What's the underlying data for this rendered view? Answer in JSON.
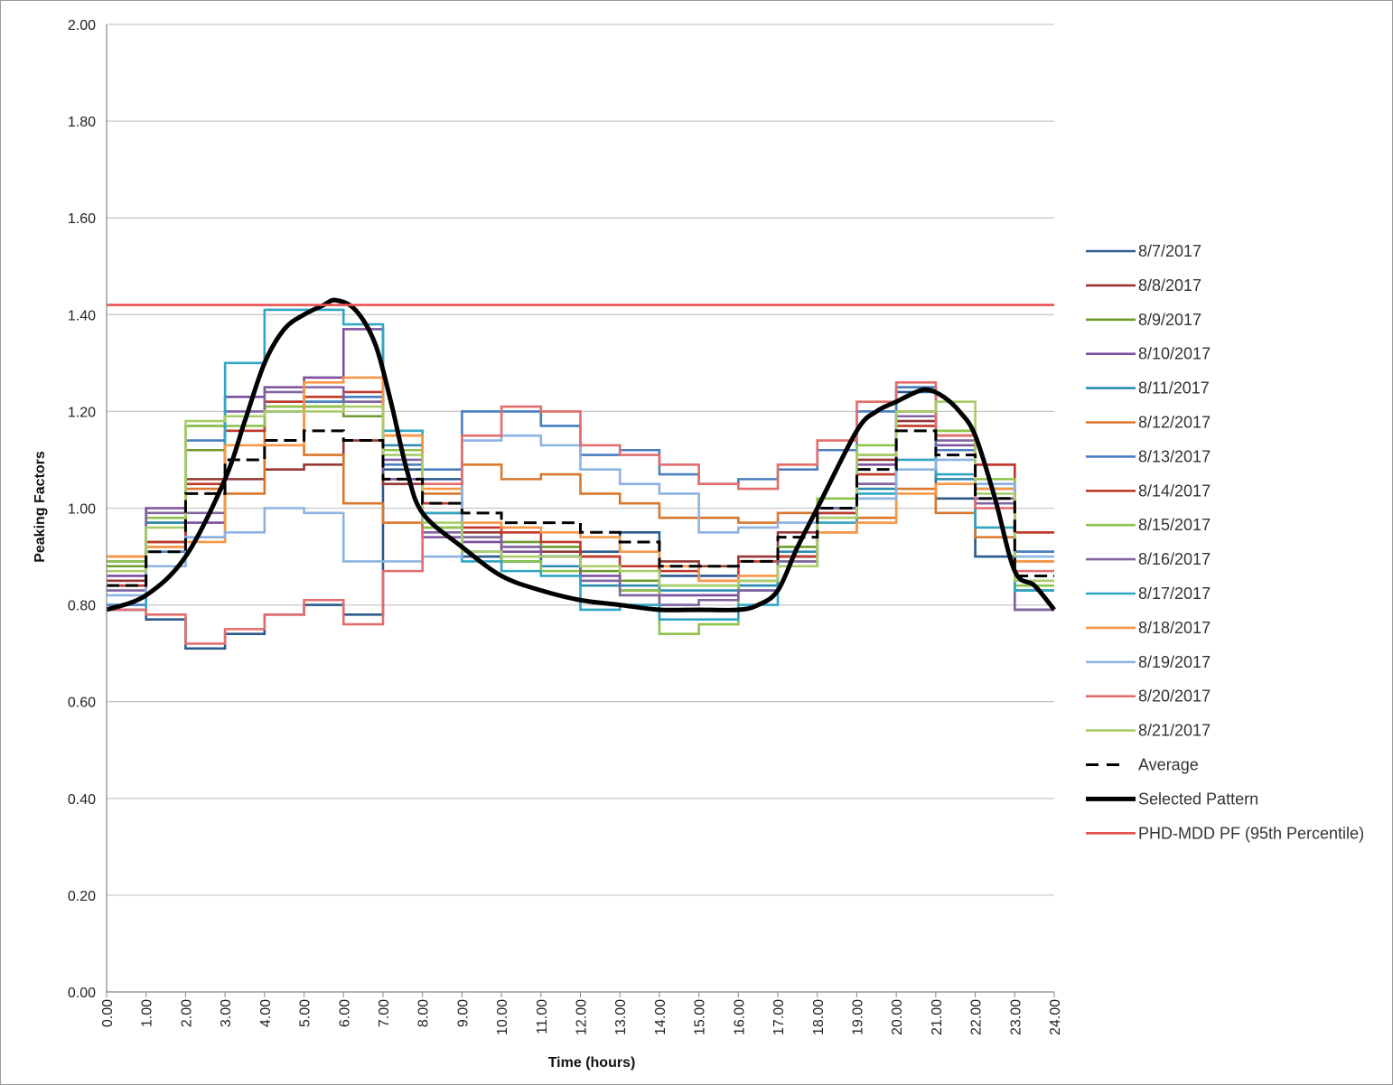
{
  "chart_data": {
    "type": "line",
    "title": "",
    "xlabel": "Time (hours)",
    "ylabel": "Peaking Factors",
    "xlim": [
      0,
      24
    ],
    "ylim": [
      0,
      2
    ],
    "x_ticks": [
      "0.00",
      "1.00",
      "2.00",
      "3.00",
      "4.00",
      "5.00",
      "6.00",
      "7.00",
      "8.00",
      "9.00",
      "10.00",
      "11.00",
      "12.00",
      "13.00",
      "14.00",
      "15.00",
      "16.00",
      "17.00",
      "18.00",
      "19.00",
      "20.00",
      "21.00",
      "22.00",
      "23.00",
      "24.00"
    ],
    "y_ticks": [
      "0.00",
      "0.20",
      "0.40",
      "0.60",
      "0.80",
      "1.00",
      "1.20",
      "1.40",
      "1.60",
      "1.80",
      "2.00"
    ],
    "grid": "horizontal",
    "legend_position": "right",
    "hour_starts": [
      0,
      1,
      2,
      3,
      4,
      5,
      6,
      7,
      8,
      9,
      10,
      11,
      12,
      13,
      14,
      15,
      16,
      17,
      18,
      19,
      20,
      21,
      22,
      23
    ],
    "series": [
      {
        "name": "8/7/2017",
        "color": "#2a5a8c",
        "style": "step",
        "values": [
          0.79,
          0.77,
          0.71,
          0.74,
          0.78,
          0.8,
          0.78,
          1.08,
          1.06,
          0.9,
          0.89,
          0.9,
          0.91,
          0.95,
          0.86,
          0.86,
          0.83,
          0.9,
          0.99,
          1.05,
          1.24,
          1.02,
          0.9,
          0.91
        ]
      },
      {
        "name": "8/8/2017",
        "color": "#953734",
        "style": "step",
        "values": [
          0.85,
          0.93,
          1.06,
          1.06,
          1.08,
          1.09,
          1.14,
          1.05,
          0.99,
          0.95,
          0.92,
          0.91,
          0.9,
          0.88,
          0.89,
          0.88,
          0.9,
          0.95,
          0.99,
          1.1,
          1.18,
          1.15,
          1.09,
          0.95
        ]
      },
      {
        "name": "8/9/2017",
        "color": "#6f9a2d",
        "style": "step",
        "values": [
          0.88,
          0.97,
          1.12,
          1.19,
          1.2,
          1.21,
          1.19,
          1.12,
          0.96,
          0.94,
          0.93,
          0.92,
          0.87,
          0.85,
          0.84,
          0.84,
          0.85,
          0.92,
          1.0,
          1.11,
          1.19,
          1.16,
          1.04,
          0.83
        ]
      },
      {
        "name": "8/10/2017",
        "color": "#7b4f9d",
        "style": "step",
        "values": [
          0.86,
          1.0,
          0.97,
          1.23,
          1.25,
          1.27,
          1.37,
          1.06,
          0.94,
          0.93,
          0.91,
          0.9,
          0.86,
          0.83,
          0.82,
          0.82,
          0.84,
          0.9,
          1.0,
          1.09,
          1.2,
          1.13,
          1.02,
          0.79
        ]
      },
      {
        "name": "8/11/2017",
        "color": "#2e8bb0",
        "style": "step",
        "values": [
          0.89,
          0.97,
          1.17,
          1.19,
          1.22,
          1.22,
          1.23,
          1.13,
          0.99,
          0.91,
          0.89,
          0.88,
          0.84,
          0.84,
          0.83,
          0.83,
          0.84,
          0.91,
          1.0,
          1.04,
          1.25,
          1.06,
          1.04,
          0.83
        ]
      },
      {
        "name": "8/12/2017",
        "color": "#d9772c",
        "style": "step",
        "values": [
          0.9,
          0.92,
          1.04,
          1.03,
          1.21,
          1.11,
          1.01,
          0.97,
          1.03,
          1.09,
          1.06,
          1.07,
          1.03,
          1.01,
          0.98,
          0.98,
          0.97,
          0.99,
          0.95,
          0.98,
          1.04,
          0.99,
          0.94,
          0.89
        ]
      },
      {
        "name": "8/13/2017",
        "color": "#4a7ec0",
        "style": "step",
        "values": [
          0.8,
          0.91,
          1.14,
          1.16,
          1.2,
          1.22,
          1.23,
          1.09,
          1.08,
          1.2,
          1.2,
          1.17,
          1.11,
          1.12,
          1.07,
          1.05,
          1.06,
          1.08,
          1.12,
          1.2,
          1.25,
          1.12,
          1.05,
          0.91
        ]
      },
      {
        "name": "8/14/2017",
        "color": "#c0392b",
        "style": "step",
        "values": [
          0.84,
          0.93,
          1.05,
          1.16,
          1.22,
          1.23,
          1.24,
          1.15,
          1.01,
          0.96,
          0.95,
          0.93,
          0.9,
          0.88,
          0.87,
          0.85,
          0.89,
          0.9,
          0.99,
          1.07,
          1.17,
          1.15,
          1.09,
          0.95
        ]
      },
      {
        "name": "8/15/2017",
        "color": "#8fc24a",
        "style": "step",
        "values": [
          0.89,
          0.98,
          1.17,
          1.17,
          1.21,
          1.21,
          1.22,
          1.12,
          0.96,
          0.91,
          0.89,
          0.87,
          0.85,
          0.83,
          0.74,
          0.76,
          0.85,
          0.89,
          1.02,
          1.13,
          1.19,
          1.16,
          1.06,
          0.84
        ]
      },
      {
        "name": "8/16/2017",
        "color": "#8064a2",
        "style": "step",
        "values": [
          0.83,
          0.99,
          0.99,
          1.2,
          1.24,
          1.25,
          1.22,
          1.1,
          0.95,
          0.94,
          0.92,
          0.9,
          0.85,
          0.82,
          0.8,
          0.81,
          0.83,
          0.89,
          1.0,
          1.05,
          1.19,
          1.14,
          1.01,
          0.79
        ]
      },
      {
        "name": "8/17/2017",
        "color": "#31a5c4",
        "style": "step",
        "values": [
          0.79,
          0.92,
          0.94,
          1.3,
          1.41,
          1.41,
          1.38,
          1.16,
          0.99,
          0.89,
          0.87,
          0.86,
          0.79,
          0.8,
          0.77,
          0.77,
          0.8,
          0.88,
          0.97,
          1.03,
          1.1,
          1.07,
          0.96,
          0.83
        ]
      },
      {
        "name": "8/18/2017",
        "color": "#f79646",
        "style": "step",
        "values": [
          0.9,
          0.92,
          0.93,
          1.13,
          1.13,
          1.26,
          1.27,
          1.15,
          1.04,
          0.97,
          0.96,
          0.95,
          0.94,
          0.91,
          0.88,
          0.85,
          0.86,
          0.88,
          0.95,
          0.97,
          1.03,
          1.05,
          1.04,
          0.89
        ]
      },
      {
        "name": "8/19/2017",
        "color": "#8db3e2",
        "style": "step",
        "values": [
          0.82,
          0.88,
          0.94,
          0.95,
          1.0,
          0.99,
          0.89,
          0.89,
          0.9,
          1.14,
          1.15,
          1.13,
          1.08,
          1.05,
          1.03,
          0.95,
          0.96,
          0.97,
          0.98,
          1.02,
          1.08,
          1.1,
          1.05,
          0.9
        ]
      },
      {
        "name": "8/20/2017",
        "color": "#e46c6c",
        "style": "step",
        "values": [
          0.79,
          0.78,
          0.72,
          0.75,
          0.78,
          0.81,
          0.76,
          0.87,
          1.05,
          1.15,
          1.21,
          1.2,
          1.13,
          1.11,
          1.09,
          1.05,
          1.04,
          1.09,
          1.14,
          1.22,
          1.26,
          1.15,
          1.0,
          0.87
        ]
      },
      {
        "name": "8/21/2017",
        "color": "#a9cc6a",
        "style": "step",
        "values": [
          0.87,
          0.96,
          1.18,
          1.19,
          1.2,
          1.2,
          1.21,
          1.11,
          0.97,
          0.91,
          0.9,
          0.9,
          0.88,
          0.87,
          0.84,
          0.84,
          0.85,
          0.88,
          0.98,
          1.11,
          1.2,
          1.22,
          1.03,
          0.85
        ]
      },
      {
        "name": "Average",
        "color": "#000000",
        "style": "step-dashed",
        "values": [
          0.84,
          0.91,
          1.03,
          1.1,
          1.14,
          1.16,
          1.14,
          1.06,
          1.01,
          0.99,
          0.97,
          0.97,
          0.95,
          0.93,
          0.88,
          0.88,
          0.89,
          0.94,
          1.0,
          1.08,
          1.16,
          1.11,
          1.02,
          0.86
        ]
      },
      {
        "name": "Selected Pattern",
        "color": "#000000",
        "style": "smooth",
        "x": [
          0,
          1,
          2,
          3,
          3.5,
          4,
          4.5,
          5,
          5.5,
          5.8,
          6.3,
          6.8,
          7.2,
          7.6,
          8,
          9,
          10,
          11,
          12,
          13,
          14,
          15,
          16,
          16.5,
          17,
          17.5,
          18,
          19,
          19.5,
          20,
          20.5,
          20.8,
          21.2,
          21.6,
          22,
          22.5,
          23,
          23.5,
          24
        ],
        "y": [
          0.79,
          0.82,
          0.9,
          1.06,
          1.18,
          1.3,
          1.37,
          1.4,
          1.42,
          1.43,
          1.41,
          1.34,
          1.22,
          1.08,
          0.99,
          0.92,
          0.86,
          0.83,
          0.81,
          0.8,
          0.79,
          0.79,
          0.79,
          0.8,
          0.83,
          0.92,
          1.0,
          1.16,
          1.2,
          1.22,
          1.24,
          1.245,
          1.23,
          1.2,
          1.15,
          1.02,
          0.87,
          0.84,
          0.79
        ]
      },
      {
        "name": "PHD-MDD PF (95th Percentile)",
        "color": "#e8504f",
        "style": "hline",
        "value": 1.42
      }
    ]
  }
}
